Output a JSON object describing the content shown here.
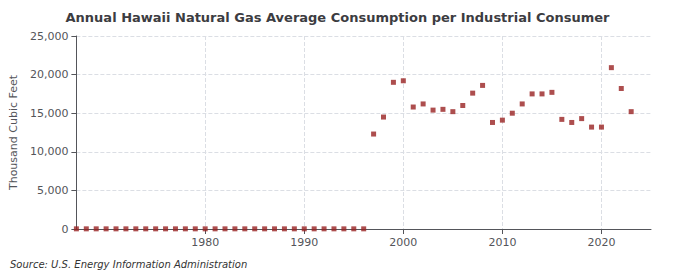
{
  "chart_data": {
    "type": "scatter",
    "title": "Annual Hawaii Natural Gas Average Consumption per Industrial Consumer",
    "ylabel": "Thousand Cubic Feet",
    "annotation": "Source: U.S. Energy Information Administration",
    "color": "#992222",
    "marker": "square",
    "grid": true,
    "xlim": [
      1967,
      2025
    ],
    "xticks": [
      1980,
      1990,
      2000,
      2010,
      2020
    ],
    "ylim": [
      0,
      25000
    ],
    "yticks": [
      0,
      {
        "value": 5000,
        "label": "5,000"
      },
      {
        "value": 10000,
        "label": "10,000"
      },
      {
        "value": 15000,
        "label": "15,000"
      },
      {
        "value": 20000,
        "label": "20,000"
      },
      {
        "value": 25000,
        "label": "25,000"
      }
    ],
    "x": [
      1967,
      1968,
      1969,
      1970,
      1971,
      1972,
      1973,
      1974,
      1975,
      1976,
      1977,
      1978,
      1979,
      1980,
      1981,
      1982,
      1983,
      1984,
      1985,
      1986,
      1987,
      1988,
      1989,
      1990,
      1991,
      1992,
      1993,
      1994,
      1995,
      1996,
      1997,
      1998,
      1999,
      2000,
      2001,
      2002,
      2003,
      2004,
      2005,
      2006,
      2007,
      2008,
      2009,
      2010,
      2011,
      2012,
      2013,
      2014,
      2015,
      2016,
      2017,
      2018,
      2019,
      2020,
      2021,
      2022,
      2023
    ],
    "values": [
      20,
      20,
      20,
      20,
      20,
      20,
      20,
      20,
      20,
      20,
      20,
      20,
      20,
      20,
      20,
      20,
      20,
      20,
      20,
      20,
      20,
      20,
      20,
      20,
      20,
      20,
      20,
      20,
      20,
      20,
      12300,
      14500,
      19000,
      19200,
      15800,
      16200,
      15400,
      15500,
      15200,
      16000,
      17600,
      18600,
      13800,
      14100,
      15000,
      16200,
      17500,
      17500,
      17700,
      14200,
      13800,
      14300,
      13200,
      13200,
      20900,
      18200,
      15200
    ]
  }
}
